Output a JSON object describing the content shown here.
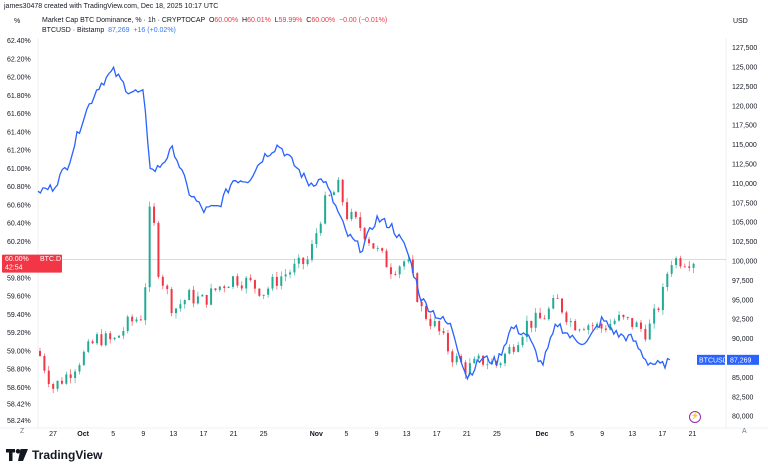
{
  "header": {
    "credit": "james30478 created with TradingView.com, Dec 18, 2025 10:17 UTC"
  },
  "legend": {
    "line1": {
      "name": "Market Cap BTC Dominance, %",
      "interval": "1h",
      "exchange": "CRYPTOCAP",
      "o_label": "O",
      "o_val": "60.00%",
      "h_label": "H",
      "h_val": "60.01%",
      "l_label": "L",
      "l_val": "59.99%",
      "c_label": "C",
      "c_val": "60.00%",
      "change": "−0.00 (−0.01%)"
    },
    "line2": {
      "name": "BTCUSD",
      "exchange": "Bitstamp",
      "price": "87,269",
      "change": "+16 (+0.02%)"
    }
  },
  "axes": {
    "left_unit": "%",
    "right_unit": "USD",
    "left_ticks": [
      "62.40%",
      "62.20%",
      "62.00%",
      "61.80%",
      "61.60%",
      "61.40%",
      "61.20%",
      "61.00%",
      "60.80%",
      "60.60%",
      "60.40%",
      "60.20%",
      "60.00%",
      "59.80%",
      "59.60%",
      "59.40%",
      "59.20%",
      "59.00%",
      "58.80%",
      "58.60%",
      "58.42%",
      "58.24%"
    ],
    "right_ticks": [
      "127,500",
      "125,000",
      "122,500",
      "120,000",
      "117,500",
      "115,000",
      "112,500",
      "110,000",
      "107,500",
      "105,000",
      "102,500",
      "100,000",
      "97,500",
      "95,000",
      "92,500",
      "90,000",
      "87,500",
      "85,000",
      "82,500",
      "80,000"
    ],
    "x_ticks": [
      "27",
      "Oct",
      "5",
      "9",
      "13",
      "17",
      "21",
      "25",
      "Nov",
      "5",
      "9",
      "13",
      "17",
      "21",
      "25",
      "Dec",
      "5",
      "9",
      "13",
      "17",
      "21"
    ],
    "corner_left": "Z",
    "corner_right": "A"
  },
  "badges": {
    "dom_value": "60.00%",
    "dom_symbol": "BTC.D",
    "dom_countdown": "42:54",
    "btc_symbol": "BTCUSD",
    "btc_value": "87,269"
  },
  "footer": {
    "brand": "TradingView"
  },
  "colors": {
    "candle_up": "#22ab94",
    "candle_down": "#f23645",
    "btc_line": "#2962ff",
    "dom_badge": "#f23645",
    "btc_badge": "#2962ff",
    "grid": "#f0f3fa"
  },
  "chart_data": {
    "type": "line",
    "series": [
      {
        "name": "Market Cap BTC Dominance, %",
        "style": "candlestick",
        "unit": "%",
        "x": [
          "Sep 25",
          "Sep 27",
          "Sep 29",
          "Oct 1",
          "Oct 3",
          "Oct 5",
          "Oct 7",
          "Oct 9",
          "Oct 10",
          "Oct 11",
          "Oct 13",
          "Oct 15",
          "Oct 17",
          "Oct 19",
          "Oct 21",
          "Oct 23",
          "Oct 25",
          "Oct 27",
          "Oct 29",
          "Oct 31",
          "Nov 2",
          "Nov 4",
          "Nov 5",
          "Nov 7",
          "Nov 9",
          "Nov 11",
          "Nov 13",
          "Nov 15",
          "Nov 17",
          "Nov 19",
          "Nov 21",
          "Nov 23",
          "Nov 25",
          "Nov 27",
          "Nov 29",
          "Dec 1",
          "Dec 3",
          "Dec 5",
          "Dec 7",
          "Dec 9",
          "Dec 11",
          "Dec 13",
          "Dec 15",
          "Dec 17",
          "Dec 18"
        ],
        "values": [
          59.0,
          58.6,
          58.75,
          58.95,
          59.15,
          59.1,
          59.3,
          59.4,
          60.7,
          59.9,
          59.45,
          59.6,
          59.55,
          59.7,
          59.8,
          59.75,
          59.65,
          59.8,
          59.9,
          60.0,
          60.6,
          60.8,
          60.5,
          60.35,
          60.1,
          59.9,
          60.0,
          59.45,
          59.25,
          58.95,
          58.8,
          58.9,
          58.85,
          59.05,
          59.3,
          59.35,
          59.55,
          59.3,
          59.3,
          59.25,
          59.35,
          59.3,
          59.2,
          59.6,
          60.0
        ]
      },
      {
        "name": "BTCUSD",
        "style": "line",
        "unit": "USD",
        "x": [
          "Sep 25",
          "Sep 27",
          "Sep 29",
          "Oct 1",
          "Oct 3",
          "Oct 5",
          "Oct 7",
          "Oct 9",
          "Oct 10",
          "Oct 11",
          "Oct 13",
          "Oct 15",
          "Oct 17",
          "Oct 19",
          "Oct 21",
          "Oct 23",
          "Oct 25",
          "Oct 27",
          "Oct 29",
          "Oct 31",
          "Nov 2",
          "Nov 4",
          "Nov 5",
          "Nov 7",
          "Nov 9",
          "Nov 11",
          "Nov 13",
          "Nov 15",
          "Nov 17",
          "Nov 19",
          "Nov 21",
          "Nov 23",
          "Nov 25",
          "Nov 27",
          "Nov 29",
          "Dec 1",
          "Dec 3",
          "Dec 5",
          "Dec 7",
          "Dec 9",
          "Dec 11",
          "Dec 13",
          "Dec 15",
          "Dec 17",
          "Dec 18"
        ],
        "values": [
          109000,
          109500,
          112500,
          118500,
          122500,
          124500,
          122000,
          121500,
          111500,
          112000,
          114500,
          109000,
          106500,
          107000,
          110500,
          110500,
          113500,
          115000,
          112500,
          110000,
          110500,
          106000,
          103500,
          101500,
          105500,
          104500,
          101500,
          95000,
          93000,
          91500,
          85000,
          87500,
          87000,
          91500,
          90500,
          86500,
          92000,
          90000,
          89500,
          92500,
          90500,
          90000,
          87000,
          86500,
          87269
        ]
      }
    ],
    "left_axis": {
      "unit": "%",
      "range": [
        58.2,
        62.45
      ]
    },
    "right_axis": {
      "unit": "USD",
      "range": [
        79000,
        129000
      ]
    },
    "grid": false,
    "title": ""
  }
}
